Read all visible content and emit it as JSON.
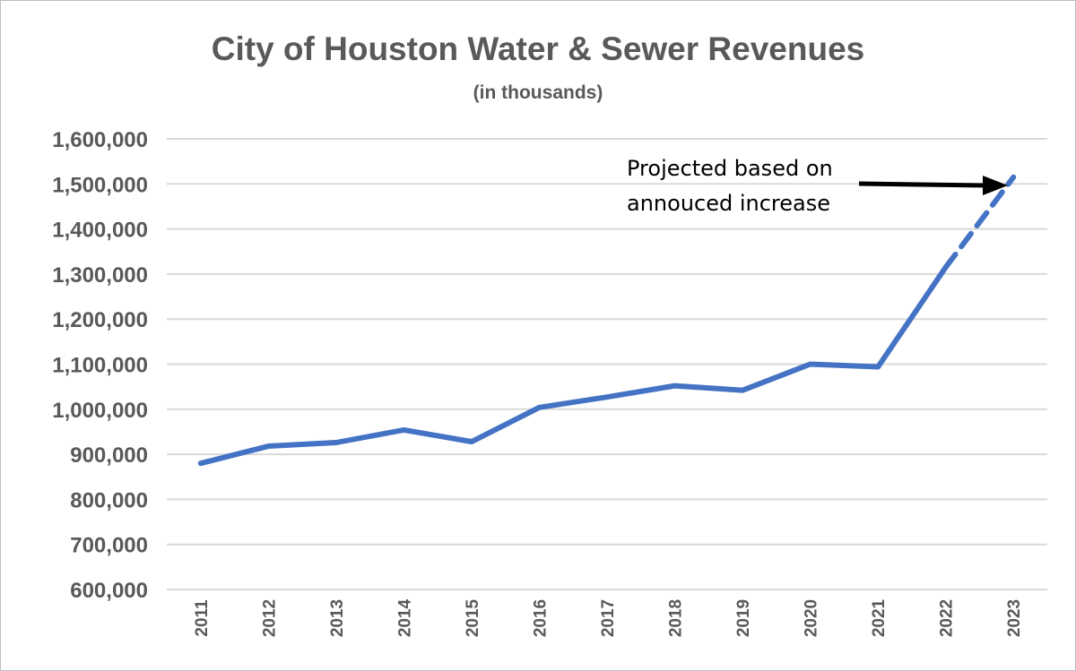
{
  "chart_data": {
    "type": "line",
    "title": "City of Houston Water & Sewer Revenues",
    "subtitle": "(in thousands)",
    "xlabel": "",
    "ylabel": "",
    "categories": [
      "2011",
      "2012",
      "2013",
      "2014",
      "2015",
      "2016",
      "2017",
      "2018",
      "2019",
      "2020",
      "2021",
      "2022",
      "2023"
    ],
    "series": [
      {
        "name": "Water & Sewer Revenues",
        "color": "#4472C4",
        "values": [
          880000,
          918000,
          926000,
          954000,
          928000,
          1004000,
          1027000,
          1052000,
          1042000,
          1100000,
          1094000,
          1315000,
          1515000
        ],
        "projected_from_index": 11
      }
    ],
    "ylim": [
      600000,
      1600000
    ],
    "yticks": [
      "600,000",
      "700,000",
      "800,000",
      "900,000",
      "1,000,000",
      "1,100,000",
      "1,200,000",
      "1,300,000",
      "1,400,000",
      "1,500,000",
      "1,600,000"
    ],
    "ytick_values": [
      600000,
      700000,
      800000,
      900000,
      1000000,
      1100000,
      1200000,
      1300000,
      1400000,
      1500000,
      1600000
    ],
    "grid": true,
    "legend": "none",
    "annotation": {
      "lines": [
        "Projected based on",
        "annouced increase"
      ],
      "points_to": "2023"
    }
  }
}
